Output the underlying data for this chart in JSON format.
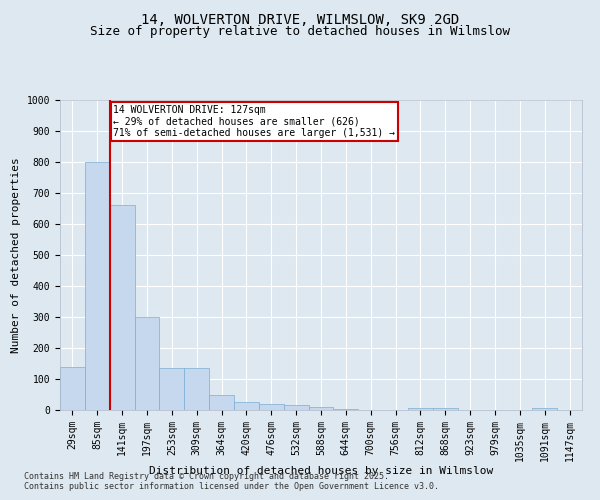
{
  "title": "14, WOLVERTON DRIVE, WILMSLOW, SK9 2GD",
  "subtitle": "Size of property relative to detached houses in Wilmslow",
  "xlabel": "Distribution of detached houses by size in Wilmslow",
  "ylabel": "Number of detached properties",
  "footer_line1": "Contains HM Land Registry data © Crown copyright and database right 2025.",
  "footer_line2": "Contains public sector information licensed under the Open Government Licence v3.0.",
  "categories": [
    "29sqm",
    "85sqm",
    "141sqm",
    "197sqm",
    "253sqm",
    "309sqm",
    "364sqm",
    "420sqm",
    "476sqm",
    "532sqm",
    "588sqm",
    "644sqm",
    "700sqm",
    "756sqm",
    "812sqm",
    "868sqm",
    "923sqm",
    "979sqm",
    "1035sqm",
    "1091sqm",
    "1147sqm"
  ],
  "values": [
    140,
    800,
    660,
    300,
    135,
    135,
    50,
    27,
    20,
    15,
    10,
    3,
    0,
    0,
    7,
    5,
    0,
    0,
    0,
    5,
    0
  ],
  "bar_color": "#c5d8ed",
  "bar_edge_color": "#7aadd4",
  "vline_color": "#cc0000",
  "vline_x_index": 2,
  "annotation_text": "14 WOLVERTON DRIVE: 127sqm\n← 29% of detached houses are smaller (626)\n71% of semi-detached houses are larger (1,531) →",
  "annotation_box_color": "#ffffff",
  "annotation_box_edge": "#cc0000",
  "ylim": [
    0,
    1000
  ],
  "yticks": [
    0,
    100,
    200,
    300,
    400,
    500,
    600,
    700,
    800,
    900,
    1000
  ],
  "bg_color": "#dde8f0",
  "plot_bg_color": "#dde8f0",
  "grid_color": "#ffffff",
  "title_fontsize": 10,
  "subtitle_fontsize": 9,
  "axis_label_fontsize": 8,
  "tick_fontsize": 7,
  "footer_fontsize": 6,
  "annotation_fontsize": 7
}
